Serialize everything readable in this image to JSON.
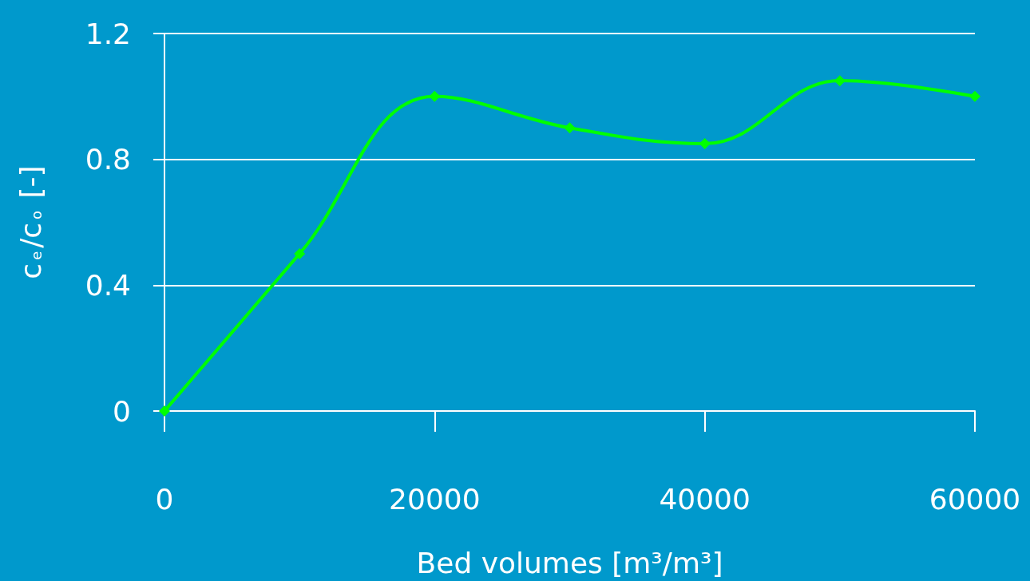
{
  "chart_data": {
    "type": "line",
    "xlabel": "Bed volumes [m³/m³]",
    "ylabel": "c$_{e}$/c$_{o}$ [-]",
    "x": [
      0,
      10000,
      20000,
      30000,
      40000,
      50000,
      60000
    ],
    "series": [
      {
        "color": "#00ff00",
        "values": [
          0,
          0.5,
          1.0,
          0.9,
          0.85,
          1.05,
          1.0
        ]
      }
    ],
    "xlim": [
      0,
      60000
    ],
    "xticks": [
      0,
      20000,
      40000,
      60000
    ],
    "ylim": [
      0,
      1.2
    ],
    "yticks": [
      0,
      0.4,
      0.8,
      1.2
    ],
    "grid": "y",
    "marker": "diamond",
    "line_style": "solid"
  }
}
